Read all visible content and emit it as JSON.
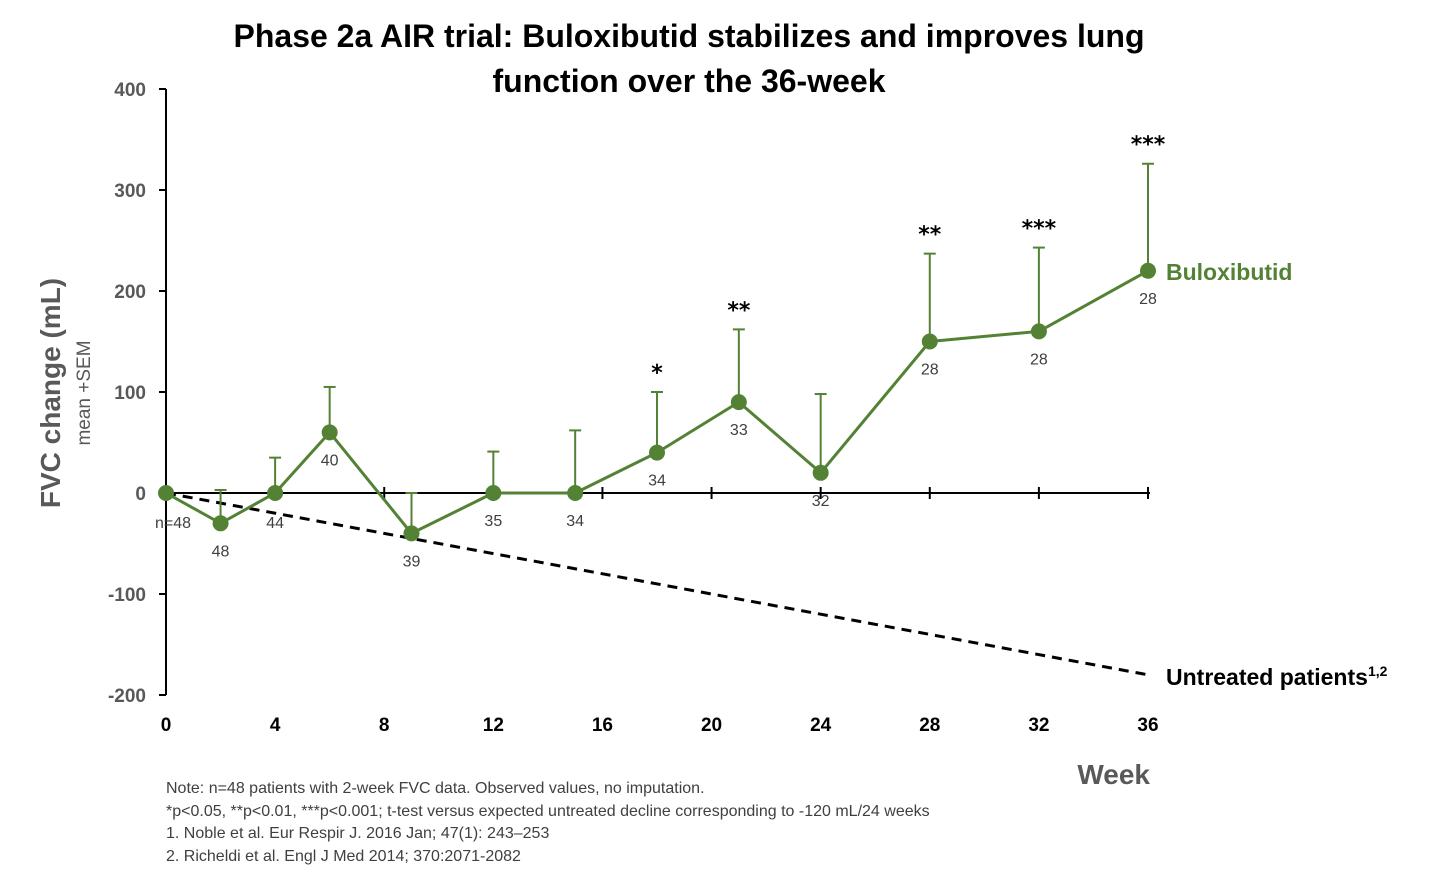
{
  "chart_data": {
    "type": "line",
    "title_lines": [
      "Phase 2a AIR trial: Buloxibutid stabilizes and improves lung",
      "function over the 36-week"
    ],
    "ylabel": "FVC change (mL)",
    "ylabel_sub": "mean +SEM",
    "xlabel": "Week",
    "xlim": [
      0,
      36
    ],
    "ylim": [
      -200,
      400
    ],
    "x_ticks": [
      0,
      4,
      8,
      12,
      16,
      20,
      24,
      28,
      32,
      36
    ],
    "y_ticks": [
      -200,
      -100,
      0,
      100,
      200,
      300,
      400
    ],
    "series": [
      {
        "name": "Buloxibutid",
        "color": "#548235",
        "points": [
          {
            "x": 0,
            "y": 0,
            "n": "n=48",
            "err_upper": 0,
            "sig": ""
          },
          {
            "x": 2,
            "y": -30,
            "n": "48",
            "err_upper": 3,
            "sig": ""
          },
          {
            "x": 4,
            "y": 0,
            "n": "44",
            "err_upper": 35,
            "sig": ""
          },
          {
            "x": 6,
            "y": 60,
            "n": "40",
            "err_upper": 105,
            "sig": ""
          },
          {
            "x": 9,
            "y": -40,
            "n": "39",
            "err_upper": 0,
            "sig": ""
          },
          {
            "x": 12,
            "y": 0,
            "n": "35",
            "err_upper": 41,
            "sig": ""
          },
          {
            "x": 15,
            "y": 0,
            "n": "34",
            "err_upper": 62,
            "sig": ""
          },
          {
            "x": 18,
            "y": 40,
            "n": "34",
            "err_upper": 100,
            "sig": "*"
          },
          {
            "x": 21,
            "y": 90,
            "n": "33",
            "err_upper": 162,
            "sig": "**"
          },
          {
            "x": 24,
            "y": 20,
            "n": "32",
            "err_upper": 98,
            "sig": ""
          },
          {
            "x": 28,
            "y": 150,
            "n": "28",
            "err_upper": 237,
            "sig": "**"
          },
          {
            "x": 32,
            "y": 160,
            "n": "28",
            "err_upper": 243,
            "sig": "***"
          },
          {
            "x": 36,
            "y": 220,
            "n": "28",
            "err_upper": 326,
            "sig": "***"
          }
        ]
      },
      {
        "name": "Untreated patients",
        "name_superscript": "1,2",
        "color": "#000000",
        "style": "dashed",
        "points": [
          {
            "x": 0,
            "y": 0
          },
          {
            "x": 36,
            "y": -180
          }
        ]
      }
    ]
  },
  "footnotes": [
    "Note: n=48 patients with 2-week FVC data. Observed values, no imputation.",
    "*p<0.05, **p<0.01, ***p<0.001; t-test versus expected untreated decline corresponding to -120 mL/24 weeks",
    "1. Noble et al. Eur Respir J. 2016 Jan; 47(1): 243–253",
    "2. Richeldi et al. Engl J Med 2014; 370:2071-2082"
  ]
}
